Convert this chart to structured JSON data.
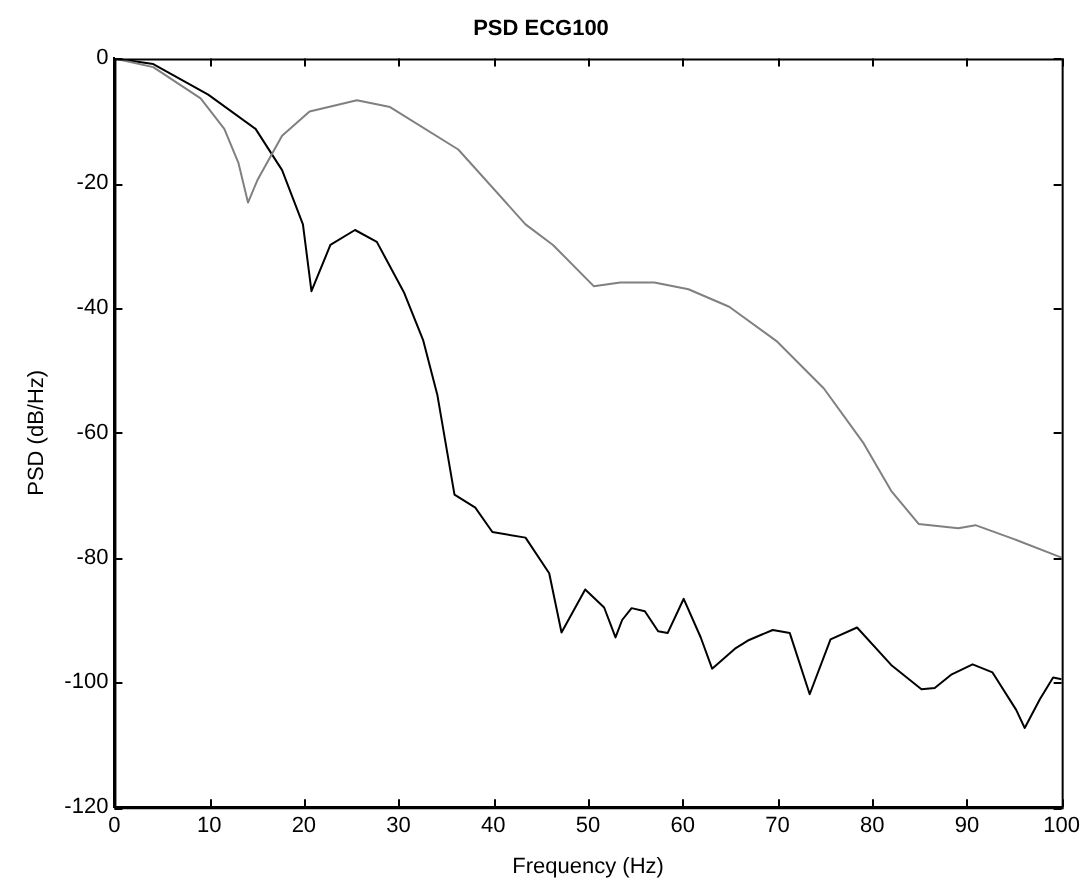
{
  "chart_data": {
    "type": "line",
    "title": "PSD ECG100",
    "xlabel": "Frequency (Hz)",
    "ylabel": "PSD (dB/Hz)",
    "xlim": [
      0,
      100
    ],
    "xticks": [
      0,
      10,
      20,
      30,
      40,
      50,
      60,
      70,
      80,
      90,
      100
    ],
    "ylim": [
      -120,
      0
    ],
    "yticks": [
      -120,
      -100,
      -80,
      -60,
      -40,
      -20,
      0
    ],
    "grid": false,
    "legend": false,
    "marker": "none",
    "line_style": "solid",
    "series": [
      {
        "color": "#808080",
        "x": [
          0,
          4.1,
          9.1,
          11.6,
          13.1,
          14.1,
          15.1,
          17.7,
          20.6,
          25.6,
          29.1,
          36.3,
          43.4,
          46.3,
          50.6,
          53.4,
          57,
          60.6,
          64.9,
          69.9,
          74.9,
          79.1,
          82,
          84.9,
          89.1,
          90.9,
          94.9,
          100
        ],
        "values": [
          0,
          -1.4,
          -6.4,
          -11.3,
          -16.8,
          -23.1,
          -19.5,
          -12.4,
          -8.5,
          -6.7,
          -7.8,
          -14.6,
          -26.6,
          -29.9,
          -36.5,
          -35.9,
          -35.9,
          -37,
          -39.8,
          -45.3,
          -52.9,
          -61.7,
          -69.3,
          -74.6,
          -75.3,
          -74.8,
          -77,
          -80
        ]
      },
      {
        "color": "#000000",
        "x": [
          0,
          4.1,
          9.9,
          14.9,
          17.7,
          19.9,
          20.8,
          22.8,
          25.4,
          27.7,
          30.6,
          32.6,
          34.1,
          35.9,
          38.1,
          39.9,
          43.4,
          45.9,
          47.2,
          49.7,
          51.7,
          52.9,
          53.6,
          54.6,
          56,
          57.4,
          58.4,
          60.1,
          61.9,
          63.1,
          65.6,
          67,
          69.5,
          71.3,
          73.4,
          75.6,
          78.4,
          82,
          85.2,
          86.6,
          88.4,
          90.6,
          92.7,
          95.2,
          96.1,
          97.7,
          99.1,
          100
        ],
        "values": [
          0,
          -0.9,
          -5.8,
          -11.3,
          -17.9,
          -26.6,
          -37.3,
          -29.9,
          -27.5,
          -29.4,
          -37.6,
          -45.2,
          -54,
          -69.9,
          -72,
          -75.9,
          -76.8,
          -82.5,
          -92,
          -85.1,
          -88,
          -92.8,
          -90,
          -88.1,
          -88.6,
          -91.8,
          -92.1,
          -86.6,
          -92.8,
          -97.8,
          -94.5,
          -93.2,
          -91.6,
          -92.1,
          -101.9,
          -93.1,
          -91.2,
          -97.2,
          -101.1,
          -100.9,
          -98.7,
          -97.1,
          -98.4,
          -104.4,
          -107.3,
          -102.7,
          -99.2,
          -99.5
        ]
      }
    ]
  }
}
